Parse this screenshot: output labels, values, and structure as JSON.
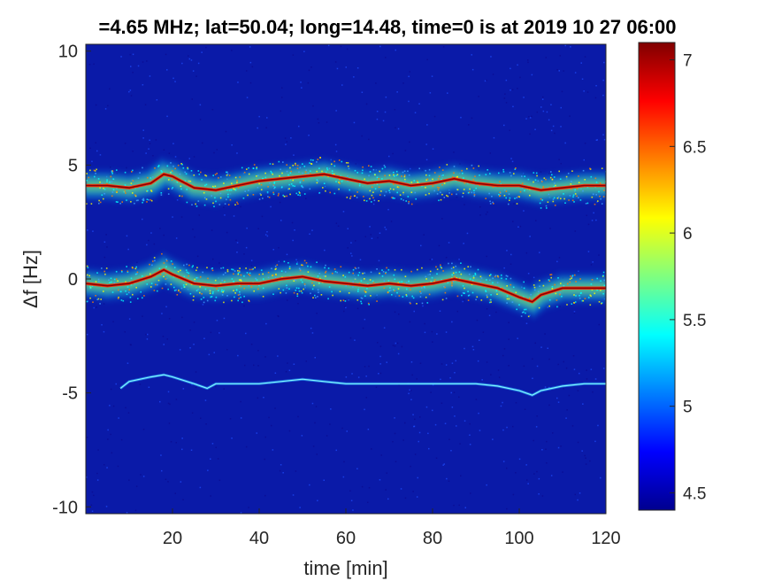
{
  "chart_data": {
    "type": "heatmap",
    "title": "=4.65 MHz;  lat=50.04; long=14.48, time=0 is at 2019 10 27 06:00",
    "xlabel": "time [min]",
    "ylabel": "Δf [Hz]",
    "xlim": [
      0,
      120
    ],
    "ylim": [
      -10.3,
      10.3
    ],
    "xticks": [
      "20",
      "40",
      "60",
      "80",
      "100",
      "120"
    ],
    "yticks": [
      "10",
      "5",
      "0",
      "-5",
      "-10"
    ],
    "xtick_values": [
      20,
      40,
      60,
      80,
      100,
      120
    ],
    "ytick_values": [
      10,
      5,
      0,
      -5,
      -10
    ],
    "colorbar": {
      "range": [
        4.4,
        7.1
      ],
      "ticks": [
        "7",
        "6.5",
        "6",
        "5.5",
        "5",
        "4.5"
      ],
      "tick_values": [
        7,
        6.5,
        6,
        5.5,
        5,
        4.5
      ],
      "colormap": "jet"
    },
    "series": [
      {
        "x": [
          0,
          5,
          10,
          15,
          18,
          20,
          22,
          25,
          30,
          35,
          40,
          45,
          50,
          55,
          60,
          65,
          70,
          75,
          80,
          85,
          90,
          95,
          100,
          105,
          110,
          115,
          120
        ],
        "y": [
          4.1,
          4.1,
          4.0,
          4.2,
          4.6,
          4.5,
          4.3,
          4.0,
          3.9,
          4.1,
          4.3,
          4.4,
          4.5,
          4.6,
          4.4,
          4.2,
          4.3,
          4.1,
          4.2,
          4.4,
          4.2,
          4.1,
          4.1,
          3.9,
          4.0,
          4.1,
          4.1
        ]
      },
      {
        "x": [
          0,
          5,
          10,
          15,
          18,
          20,
          25,
          30,
          35,
          40,
          45,
          50,
          55,
          60,
          65,
          70,
          75,
          80,
          85,
          90,
          95,
          100,
          103,
          105,
          110,
          115,
          120
        ],
        "y": [
          -0.2,
          -0.3,
          -0.2,
          0.1,
          0.4,
          0.2,
          -0.2,
          -0.3,
          -0.2,
          -0.2,
          0.0,
          0.1,
          -0.1,
          -0.2,
          -0.3,
          -0.2,
          -0.3,
          -0.2,
          0.0,
          -0.2,
          -0.4,
          -0.8,
          -1.0,
          -0.7,
          -0.4,
          -0.4,
          -0.4
        ]
      },
      {
        "x": [
          8,
          10,
          15,
          18,
          20,
          25,
          28,
          30,
          35,
          40,
          45,
          50,
          55,
          60,
          65,
          70,
          75,
          80,
          85,
          90,
          95,
          100,
          103,
          105,
          110,
          115,
          120
        ],
        "y": [
          -4.8,
          -4.5,
          -4.3,
          -4.2,
          -4.3,
          -4.6,
          -4.8,
          -4.6,
          -4.6,
          -4.6,
          -4.5,
          -4.4,
          -4.5,
          -4.6,
          -4.6,
          -4.6,
          -4.6,
          -4.6,
          -4.6,
          -4.6,
          -4.7,
          -4.9,
          -5.1,
          -4.9,
          -4.7,
          -4.6,
          -4.6
        ]
      }
    ]
  }
}
